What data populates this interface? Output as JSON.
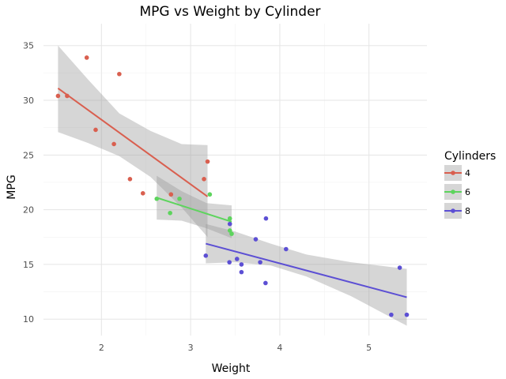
{
  "chart_data": {
    "type": "scatter",
    "title": "MPG vs Weight by Cylinder",
    "xlabel": "Weight",
    "ylabel": "MPG",
    "xlim": [
      1.35,
      5.65
    ],
    "ylim": [
      8.5,
      37
    ],
    "x_ticks": [
      2,
      3,
      4,
      5
    ],
    "y_ticks": [
      10,
      15,
      20,
      25,
      30,
      35
    ],
    "grid": true,
    "legend": {
      "title": "Cylinders",
      "placement": "right"
    },
    "series": [
      {
        "name": "4",
        "color": "#d95f4f",
        "points": [
          [
            1.513,
            30.4
          ],
          [
            1.615,
            30.4
          ],
          [
            1.835,
            33.9
          ],
          [
            1.935,
            27.3
          ],
          [
            2.14,
            26.0
          ],
          [
            2.2,
            32.4
          ],
          [
            2.32,
            22.8
          ],
          [
            2.465,
            21.5
          ],
          [
            2.78,
            21.4
          ],
          [
            3.15,
            22.8
          ],
          [
            3.19,
            24.4
          ]
        ],
        "fit": {
          "x": [
            1.513,
            3.19
          ],
          "y": [
            31.1,
            21.2
          ]
        },
        "ribbon": {
          "x": [
            1.513,
            1.85,
            2.2,
            2.55,
            2.9,
            3.19
          ],
          "lower": [
            27.1,
            26.1,
            24.9,
            23.0,
            20.2,
            17.5
          ],
          "upper": [
            35.0,
            31.9,
            28.8,
            27.2,
            26.0,
            25.9
          ]
        }
      },
      {
        "name": "6",
        "color": "#5dd45d",
        "points": [
          [
            2.62,
            21.0
          ],
          [
            2.77,
            19.7
          ],
          [
            2.875,
            21.0
          ],
          [
            3.215,
            21.4
          ],
          [
            3.44,
            18.1
          ],
          [
            3.44,
            19.2
          ],
          [
            3.46,
            17.8
          ]
        ],
        "fit": {
          "x": [
            2.62,
            3.46
          ],
          "y": [
            21.1,
            18.9
          ]
        },
        "ribbon": {
          "x": [
            2.62,
            2.9,
            3.18,
            3.46
          ],
          "lower": [
            19.1,
            19.0,
            18.3,
            17.4
          ],
          "upper": [
            23.1,
            21.7,
            20.6,
            20.4
          ]
        }
      },
      {
        "name": "8",
        "color": "#5c4fd4",
        "points": [
          [
            3.17,
            15.8
          ],
          [
            3.435,
            15.2
          ],
          [
            3.44,
            18.7
          ],
          [
            3.52,
            15.5
          ],
          [
            3.57,
            15.0
          ],
          [
            3.57,
            14.3
          ],
          [
            3.73,
            17.3
          ],
          [
            3.78,
            15.2
          ],
          [
            3.84,
            13.3
          ],
          [
            3.845,
            19.2
          ],
          [
            4.07,
            16.4
          ],
          [
            5.25,
            10.4
          ],
          [
            5.345,
            14.7
          ],
          [
            5.424,
            10.4
          ]
        ],
        "fit": {
          "x": [
            3.17,
            5.424
          ],
          "y": [
            16.9,
            12.0
          ]
        },
        "ribbon": {
          "x": [
            3.17,
            3.5,
            3.9,
            4.3,
            4.8,
            5.424
          ],
          "lower": [
            15.1,
            15.2,
            14.9,
            13.9,
            12.1,
            9.4
          ],
          "upper": [
            18.7,
            18.0,
            16.9,
            15.9,
            15.2,
            14.6
          ]
        }
      }
    ]
  }
}
